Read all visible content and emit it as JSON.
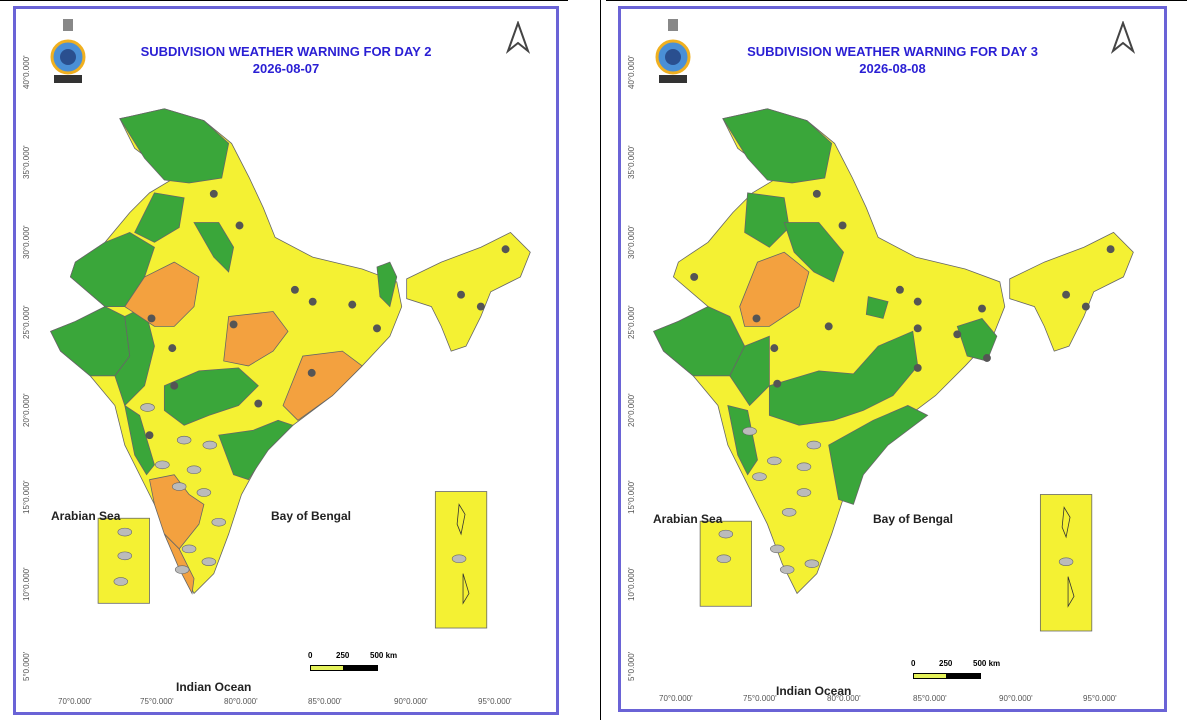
{
  "panels": [
    {
      "title_line1": "SUBDIVISION WEATHER WARNING FOR DAY 2",
      "title_line2": "2026-08-07",
      "latitudes": [
        "40°0.000'",
        "35°0.000'",
        "30°0.000'",
        "25°0.000'",
        "20°0.000'",
        "15°0.000'",
        "10°0.000'",
        "5°0.000'"
      ],
      "longitudes": [
        "70°0.000'",
        "75°0.000'",
        "80°0.000'",
        "85°0.000'",
        "90°0.000'",
        "95°0.000'"
      ],
      "labels": {
        "arabian_sea": "Arabian Sea",
        "bay_of_bengal": "Bay of Bengal",
        "indian_ocean": "Indian Ocean"
      },
      "scale": {
        "zero": "0",
        "mid": "250",
        "end": "500 km"
      }
    },
    {
      "title_line1": "SUBDIVISION WEATHER WARNING FOR DAY 3",
      "title_line2": "2026-08-08",
      "latitudes": [
        "40°0.000'",
        "35°0.000'",
        "30°0.000'",
        "25°0.000'",
        "20°0.000'",
        "15°0.000'",
        "10°0.000'",
        "5°0.000'"
      ],
      "longitudes": [
        "70°0.000'",
        "75°0.000'",
        "80°0.000'",
        "85°0.000'",
        "90°0.000'",
        "95°0.000'"
      ],
      "labels": {
        "arabian_sea": "Arabian Sea",
        "bay_of_bengal": "Bay of Bengal",
        "indian_ocean": "Indian Ocean"
      },
      "scale": {
        "zero": "0",
        "mid": "250",
        "end": "500 km"
      }
    }
  ],
  "colors": {
    "green": "#3aa63a",
    "yellow": "#f4f133",
    "orange": "#f3a13f",
    "frame": "#6a63d6",
    "title": "#2a1fd4"
  },
  "icons": [
    "thunderstorm-icon",
    "heavy-rain-icon"
  ]
}
